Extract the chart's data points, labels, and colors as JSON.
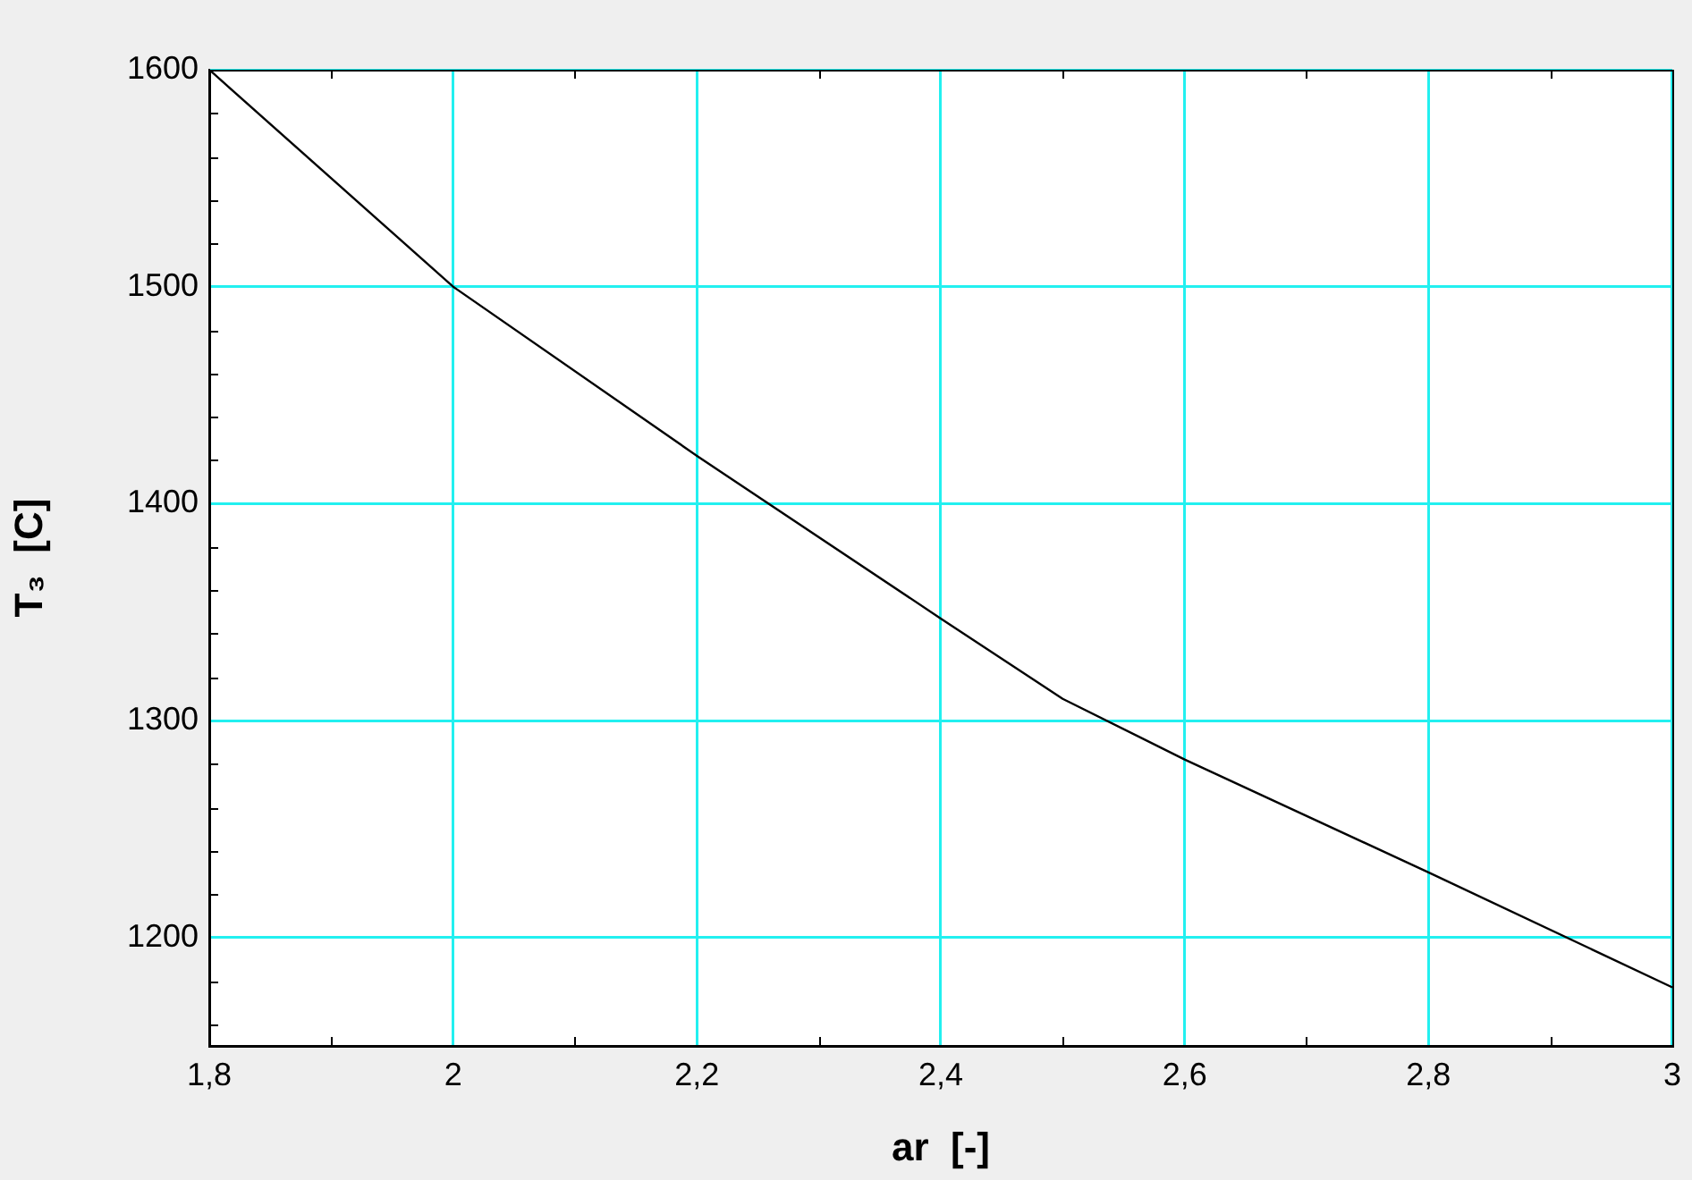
{
  "chart_data": {
    "type": "line",
    "xlabel": "ar  [-]",
    "ylabel": "T₃  [C]",
    "x": [
      1.8,
      2.0,
      2.2,
      2.4,
      2.5,
      2.6,
      2.8,
      3.0
    ],
    "series": [
      {
        "color": "#000000",
        "values": [
          1600,
          1500,
          1422,
          1347,
          1310,
          1282,
          1230,
          1177
        ]
      }
    ],
    "xlim": [
      1.8,
      3
    ],
    "xticks": [
      {
        "value": 1.8,
        "label": "1,8"
      },
      {
        "value": 1.9,
        "label": null
      },
      2,
      {
        "value": 2.1,
        "label": null
      },
      {
        "value": 2.2,
        "label": "2,2"
      },
      {
        "value": 2.3,
        "label": null
      },
      {
        "value": 2.4,
        "label": "2,4"
      },
      {
        "value": 2.5,
        "label": null
      },
      {
        "value": 2.6,
        "label": "2,6"
      },
      {
        "value": 2.7,
        "label": null
      },
      {
        "value": 2.8,
        "label": "2,8"
      },
      {
        "value": 2.9,
        "label": null
      },
      3
    ],
    "ylim": [
      1150,
      1600
    ],
    "yticks": [
      {
        "value": 1160,
        "label": null
      },
      {
        "value": 1180,
        "label": null
      },
      1200,
      {
        "value": 1220,
        "label": null
      },
      {
        "value": 1240,
        "label": null
      },
      {
        "value": 1260,
        "label": null
      },
      {
        "value": 1280,
        "label": null
      },
      1300,
      {
        "value": 1320,
        "label": null
      },
      {
        "value": 1340,
        "label": null
      },
      {
        "value": 1360,
        "label": null
      },
      {
        "value": 1380,
        "label": null
      },
      1400,
      {
        "value": 1420,
        "label": null
      },
      {
        "value": 1440,
        "label": null
      },
      {
        "value": 1460,
        "label": null
      },
      {
        "value": 1480,
        "label": null
      },
      1500,
      {
        "value": 1520,
        "label": null
      },
      {
        "value": 1540,
        "label": null
      },
      {
        "value": 1560,
        "label": null
      },
      {
        "value": 1580,
        "label": null
      },
      1600
    ],
    "grid": true,
    "legend": false,
    "marker": "none",
    "line_style": "solid"
  }
}
